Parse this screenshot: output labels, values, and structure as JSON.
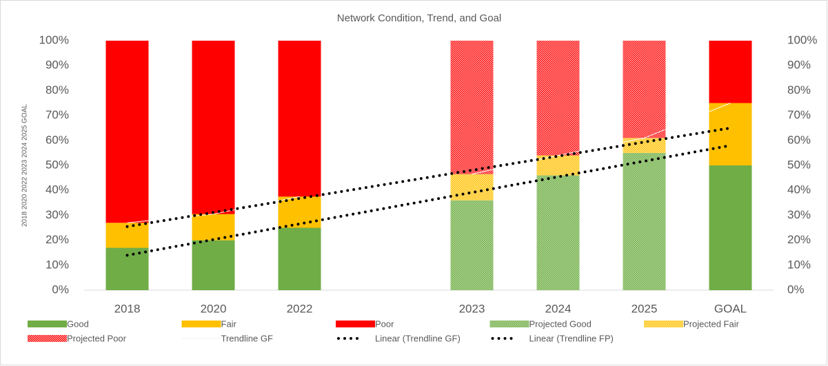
{
  "chart_data": {
    "type": "stacked-bar",
    "title": "Network Condition, Trend, and Goal",
    "y_label": "2018 2020 2022 2023 2024 2025 GOAL",
    "categories": [
      "2018",
      "2020",
      "2022",
      null,
      "2023",
      "2024",
      "2025",
      "GOAL"
    ],
    "series": [
      {
        "name": "Good",
        "color": "#70ad47",
        "values": [
          17,
          20,
          25,
          null,
          null,
          null,
          null,
          50
        ]
      },
      {
        "name": "Fair",
        "color": "#ffc000",
        "values": [
          10,
          10.5,
          12.5,
          null,
          null,
          null,
          null,
          25
        ]
      },
      {
        "name": "Poor",
        "color": "#ff0000",
        "values": [
          73,
          69.5,
          62.5,
          null,
          null,
          null,
          null,
          25
        ]
      },
      {
        "name": "Projected Good",
        "color": "#70ad47",
        "pattern": true,
        "values": [
          null,
          null,
          null,
          null,
          36,
          46,
          55,
          null
        ]
      },
      {
        "name": "Projected Fair",
        "color": "#ffc000",
        "pattern": true,
        "values": [
          null,
          null,
          null,
          null,
          10.5,
          8,
          6,
          null
        ]
      },
      {
        "name": "Projected Poor",
        "color": "#ff0000",
        "pattern": true,
        "values": [
          null,
          null,
          null,
          null,
          53.5,
          46,
          39,
          null
        ]
      },
      {
        "name": "Trendline GF",
        "color": "#ffffff",
        "line": true,
        "values": [
          27,
          30.5,
          37.5,
          null,
          46.5,
          54,
          61,
          75
        ]
      }
    ],
    "trendlines": [
      {
        "name": "Linear (Trendline GF)",
        "color": "#000000",
        "start": 25.5,
        "end": 65
      },
      {
        "name": "Linear (Trendline FP)",
        "color": "#000000",
        "start": 14,
        "end": 58
      }
    ],
    "ylim": [
      0,
      100
    ],
    "yticks": [
      {
        "value": 0,
        "label": "0%"
      },
      {
        "value": 10,
        "label": "10%"
      },
      {
        "value": 20,
        "label": "20%"
      },
      {
        "value": 30,
        "label": "30%"
      },
      {
        "value": 40,
        "label": "40%"
      },
      {
        "value": 50,
        "label": "50%"
      },
      {
        "value": 60,
        "label": "60%"
      },
      {
        "value": 70,
        "label": "70%"
      },
      {
        "value": 80,
        "label": "80%"
      },
      {
        "value": 90,
        "label": "90%"
      },
      {
        "value": 100,
        "label": "100%"
      }
    ],
    "y2lim": [
      0,
      100
    ],
    "y2ticks": [
      {
        "value": 0,
        "label": "0%"
      },
      {
        "value": 10,
        "label": "10%"
      },
      {
        "value": 20,
        "label": "20%"
      },
      {
        "value": 30,
        "label": "30%"
      },
      {
        "value": 40,
        "label": "40%"
      },
      {
        "value": 50,
        "label": "50%"
      },
      {
        "value": 60,
        "label": "60%"
      },
      {
        "value": 70,
        "label": "70%"
      },
      {
        "value": 80,
        "label": "80%"
      },
      {
        "value": 90,
        "label": "90%"
      },
      {
        "value": 100,
        "label": "100%"
      }
    ]
  }
}
